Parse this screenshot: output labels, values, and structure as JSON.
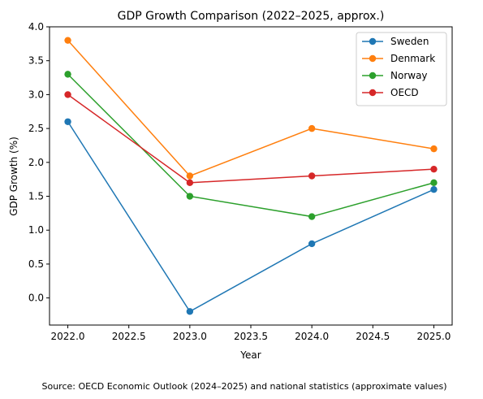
{
  "chart_data": {
    "type": "line",
    "title": "GDP Growth Comparison (2022–2025, approx.)",
    "xlabel": "Year",
    "ylabel": "GDP Growth (%)",
    "x": [
      2022,
      2023,
      2024,
      2025
    ],
    "xticks": [
      "2022.0",
      "2022.5",
      "2023.0",
      "2023.5",
      "2024.0",
      "2024.5",
      "2025.0"
    ],
    "yticks": [
      "0.0",
      "0.5",
      "1.0",
      "1.5",
      "2.0",
      "2.5",
      "3.0",
      "3.5",
      "4.0"
    ],
    "xlim": [
      2021.85,
      2025.15
    ],
    "ylim": [
      -0.4,
      4.0
    ],
    "grid": false,
    "legend_position": "top-right",
    "series": [
      {
        "name": "Sweden",
        "color": "#1f77b4",
        "values": [
          2.6,
          -0.2,
          0.8,
          1.6
        ]
      },
      {
        "name": "Denmark",
        "color": "#ff7f0e",
        "values": [
          3.8,
          1.8,
          2.5,
          2.2
        ]
      },
      {
        "name": "Norway",
        "color": "#2ca02c",
        "values": [
          3.3,
          1.5,
          1.2,
          1.7
        ]
      },
      {
        "name": "OECD",
        "color": "#d62728",
        "values": [
          3.0,
          1.7,
          1.8,
          1.9
        ]
      }
    ],
    "source": "Source: OECD Economic Outlook (2024–2025) and national statistics (approximate values)"
  }
}
